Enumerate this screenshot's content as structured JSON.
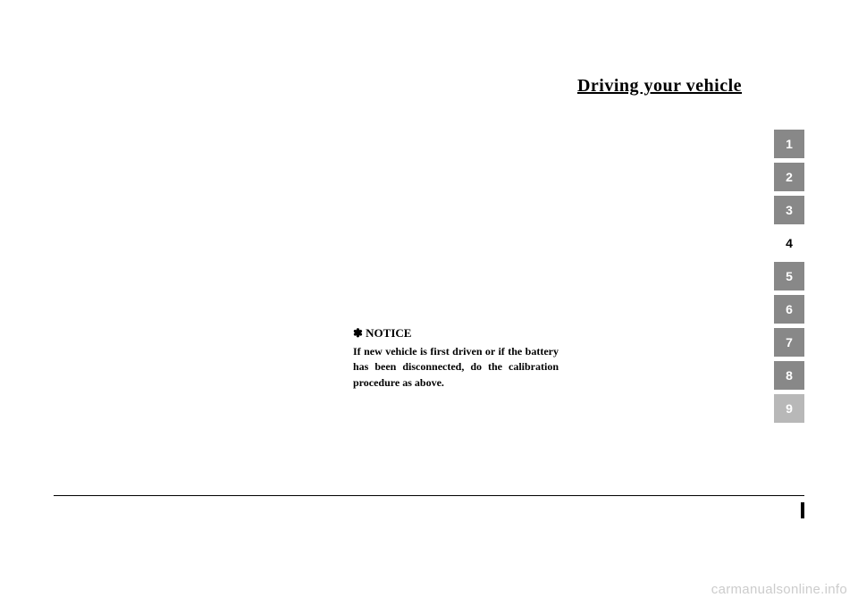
{
  "header": {
    "title": "Driving your vehicle"
  },
  "tabs": [
    {
      "label": "1",
      "style": "dark"
    },
    {
      "label": "2",
      "style": "dark"
    },
    {
      "label": "3",
      "style": "dark"
    },
    {
      "label": "4",
      "style": "active"
    },
    {
      "label": "5",
      "style": "dark"
    },
    {
      "label": "6",
      "style": "dark"
    },
    {
      "label": "7",
      "style": "dark"
    },
    {
      "label": "8",
      "style": "dark"
    },
    {
      "label": "9",
      "style": "light"
    }
  ],
  "notice": {
    "heading": "✽ NOTICE",
    "body": "If new vehicle is first driven or if the battery has been disconnected, do the calibration procedure as above."
  },
  "watermark": "carmanualsonline.info",
  "colors": {
    "tab_dark_bg": "#888888",
    "tab_light_bg": "#b8b8b8",
    "tab_active_bg": "#ffffff",
    "tab_inactive_text": "#ffffff",
    "tab_active_text": "#000000",
    "page_bg": "#ffffff",
    "text": "#000000",
    "watermark": "#cccccc"
  }
}
